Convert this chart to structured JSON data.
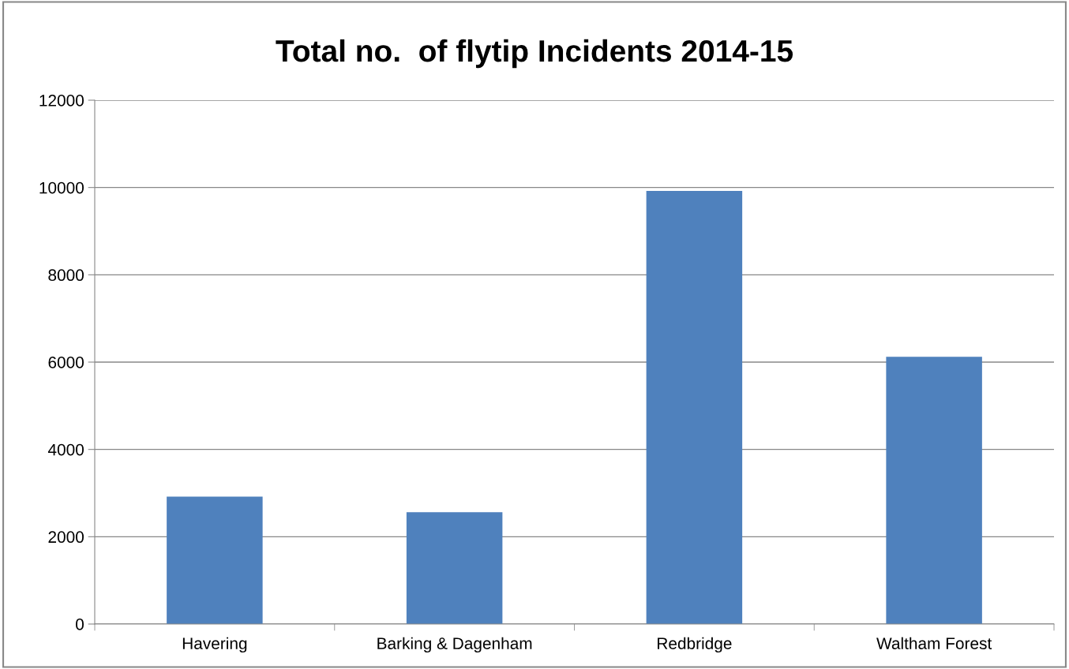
{
  "chart_data": {
    "type": "bar",
    "title": "Total no.  of flytip Incidents 2014-15",
    "categories": [
      "Havering",
      "Barking & Dagenham",
      "Redbridge",
      "Waltham Forest"
    ],
    "values": [
      2920,
      2560,
      9920,
      6120
    ],
    "color": "#4f81bd",
    "ylim": [
      0,
      12000
    ],
    "yticks": [
      0,
      2000,
      4000,
      6000,
      8000,
      10000,
      12000
    ],
    "grid": "y",
    "legend": false
  }
}
